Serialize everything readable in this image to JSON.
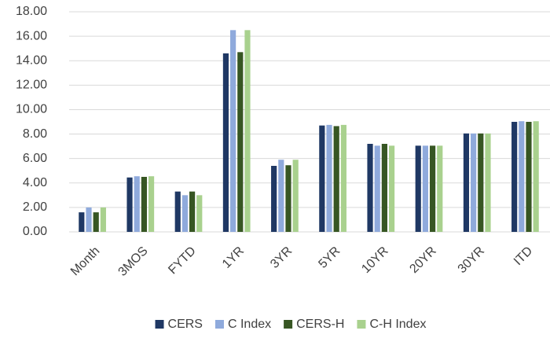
{
  "chart_data": {
    "type": "bar",
    "categories": [
      "Month",
      "3MOS",
      "FYTD",
      "1YR",
      "3YR",
      "5YR",
      "10YR",
      "20YR",
      "30YR",
      "ITD"
    ],
    "series": [
      {
        "name": "CERS",
        "color": "#1f3864",
        "values": [
          1.6,
          4.45,
          3.3,
          14.6,
          5.4,
          8.7,
          7.2,
          7.05,
          8.05,
          9.0
        ]
      },
      {
        "name": "C Index",
        "color": "#8faadc",
        "values": [
          2.0,
          4.55,
          3.0,
          16.5,
          5.9,
          8.75,
          7.05,
          7.05,
          8.05,
          9.05
        ]
      },
      {
        "name": "CERS-H",
        "color": "#375623",
        "values": [
          1.6,
          4.5,
          3.3,
          14.7,
          5.45,
          8.65,
          7.2,
          7.05,
          8.05,
          9.0
        ]
      },
      {
        "name": "C-H Index",
        "color": "#a9d18e",
        "values": [
          2.0,
          4.55,
          3.0,
          16.5,
          5.9,
          8.75,
          7.05,
          7.05,
          8.05,
          9.05
        ]
      }
    ],
    "ylim": [
      0,
      18
    ],
    "yticks": [
      {
        "value": 0,
        "label": "0.00"
      },
      {
        "value": 2,
        "label": "2.00"
      },
      {
        "value": 4,
        "label": "4.00"
      },
      {
        "value": 6,
        "label": "6.00"
      },
      {
        "value": 8,
        "label": "8.00"
      },
      {
        "value": 10,
        "label": "10.00"
      },
      {
        "value": 12,
        "label": "12.00"
      },
      {
        "value": 14,
        "label": "14.00"
      },
      {
        "value": 16,
        "label": "16.00"
      },
      {
        "value": 18,
        "label": "18.00"
      }
    ],
    "grid": true,
    "legend": "bottom"
  }
}
